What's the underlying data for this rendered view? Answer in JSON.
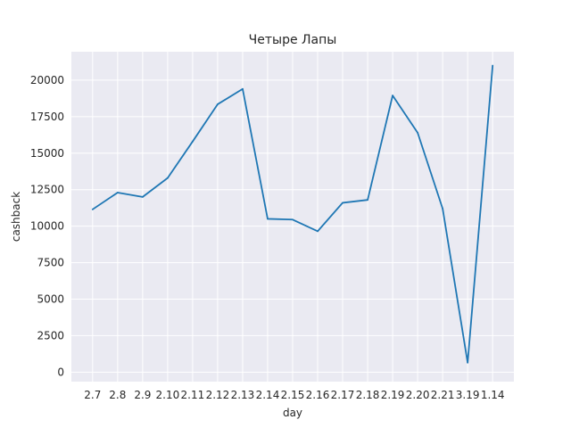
{
  "chart_data": {
    "type": "line",
    "title": "Четыре Лапы",
    "xlabel": "day",
    "ylabel": "cashback",
    "categories": [
      "2.7",
      "2.8",
      "2.9",
      "2.10",
      "2.11",
      "2.12",
      "2.13",
      "2.14",
      "2.15",
      "2.16",
      "2.17",
      "2.18",
      "2.19",
      "2.20",
      "2.21",
      "3.19",
      "1.14"
    ],
    "series": [
      {
        "values": [
          11150,
          12300,
          12000,
          13300,
          15800,
          18350,
          19400,
          10500,
          10450,
          9650,
          11600,
          11800,
          18950,
          16400,
          11200,
          650,
          21000
        ]
      }
    ],
    "yticks": [
      0,
      2500,
      5000,
      7500,
      10000,
      12500,
      15000,
      17500,
      20000
    ],
    "ylim": [
      -650,
      21950
    ],
    "grid": true,
    "colors": {
      "line": "#1f77b4",
      "plot_background": "#eaeaf2",
      "grid": "#ffffff",
      "text": "#262626"
    }
  }
}
